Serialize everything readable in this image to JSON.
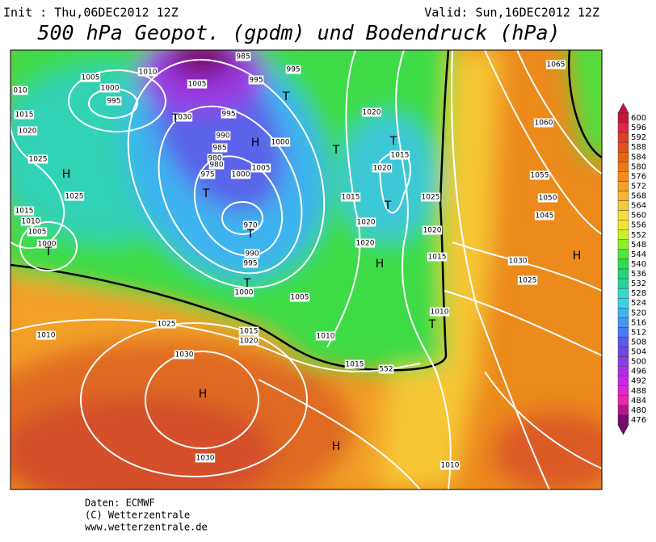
{
  "header": {
    "init": "Init : Thu,06DEC2012 12Z",
    "valid": "Valid: Sun,16DEC2012 12Z",
    "title": "500 hPa Geopot. (gpdm) und Bodendruck (hPa)"
  },
  "colorbar": {
    "labels": [
      "600",
      "596",
      "592",
      "588",
      "584",
      "580",
      "576",
      "572",
      "568",
      "564",
      "560",
      "556",
      "552",
      "548",
      "544",
      "540",
      "536",
      "532",
      "528",
      "524",
      "520",
      "516",
      "512",
      "508",
      "504",
      "500",
      "496",
      "492",
      "488",
      "484",
      "480",
      "476"
    ]
  },
  "map": {
    "isobar_labels": [
      "1010",
      "1005",
      "1000",
      "995",
      "1005",
      "995",
      "1030",
      "985",
      "995",
      "995",
      "1020",
      "1015",
      "1020",
      "1000",
      "1005",
      "1000",
      "990",
      "985",
      "980",
      "980",
      "975",
      "1015",
      "1025",
      "1020",
      "1020",
      "1020",
      "1015",
      "970",
      "990",
      "995",
      "1000",
      "1005",
      "1010",
      "1015",
      "1020",
      "1010",
      "1015",
      "1010",
      "1025",
      "1030",
      "1030",
      "1010",
      "1065",
      "1060",
      "1055",
      "1050",
      "1045",
      "1030",
      "1025",
      "010",
      "1015",
      "1020",
      "1025",
      "1025",
      "1015",
      "1010",
      "1005",
      "1000",
      "552"
    ],
    "centers": [
      "H",
      "T",
      "T",
      "T",
      "H",
      "T",
      "T",
      "T",
      "T",
      "H",
      "T",
      "T",
      "T",
      "H",
      "H",
      "H"
    ]
  },
  "footer": {
    "lines": [
      "Daten: ECMWF",
      "(C) Wetterzentrale",
      "www.wetterzentrale.de"
    ]
  }
}
